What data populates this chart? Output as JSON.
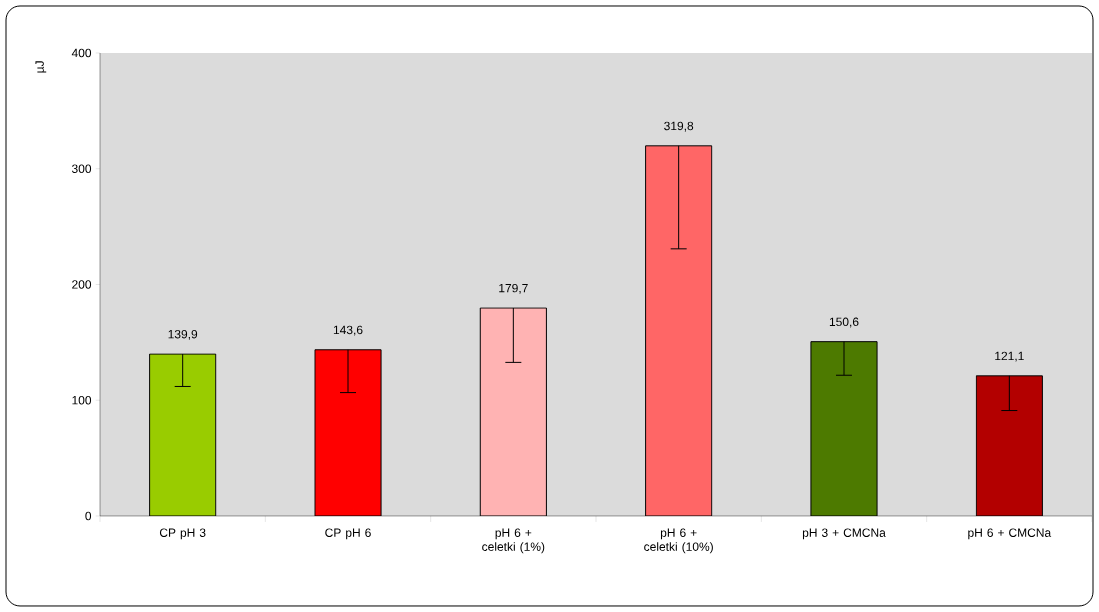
{
  "chart_data": {
    "type": "bar",
    "ylabel": "µJ",
    "categories": [
      "CP pH 3",
      "CP pH 6",
      "pH 6 + celetki (1%)",
      "pH 6 + celetki (10%)",
      "pH 3 + CMCNa",
      "pH 6 + CMCNa"
    ],
    "values": [
      139.9,
      143.6,
      179.7,
      319.8,
      150.6,
      121.1
    ],
    "value_labels": [
      "139,9",
      "143,6",
      "179,7",
      "319,8",
      "150,6",
      "121,1"
    ],
    "errors": [
      [
        111.9,
        139.9
      ],
      [
        106.6,
        143.6
      ],
      [
        132.7,
        179.7
      ],
      [
        230.8,
        319.8
      ],
      [
        121.6,
        150.6
      ],
      [
        91.1,
        121.1
      ]
    ],
    "colors": [
      "#99cc00",
      "#ff0000",
      "#ffb3b3",
      "#ff6666",
      "#4d7a00",
      "#b30000"
    ],
    "ylim": [
      0,
      400
    ],
    "yticks": [
      0,
      100,
      200,
      300,
      400
    ],
    "grid": false
  }
}
